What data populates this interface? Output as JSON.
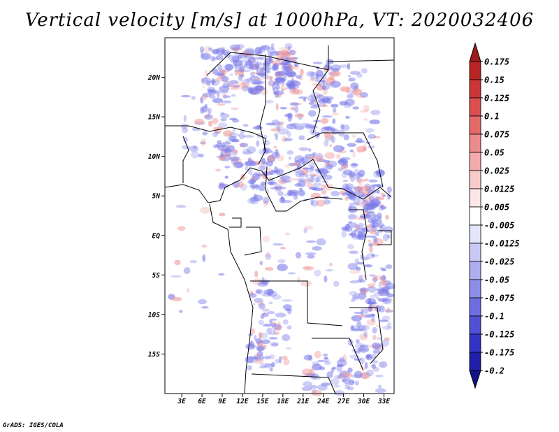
{
  "chart_data": {
    "type": "heatmap",
    "title": "Vertical velocity [m/s] at 1000hPa, VT: 2020032406",
    "x_ticks": [
      "3E",
      "6E",
      "9E",
      "12E",
      "15E",
      "18E",
      "21E",
      "24E",
      "27E",
      "30E",
      "33E"
    ],
    "x_tick_values": [
      3,
      6,
      9,
      12,
      15,
      18,
      21,
      24,
      27,
      30,
      33
    ],
    "y_ticks": [
      "20N",
      "15N",
      "10N",
      "5N",
      "EQ",
      "5S",
      "10S",
      "15S"
    ],
    "y_tick_values": [
      20,
      15,
      10,
      5,
      0,
      -5,
      -10,
      -15
    ],
    "xlim": [
      0.5,
      34.5
    ],
    "ylim": [
      -20,
      25
    ],
    "colorbar": {
      "labels": [
        "0.175",
        "0.15",
        "0.125",
        "0.1",
        "0.075",
        "0.05",
        "0.025",
        "0.0125",
        "0.005",
        "-0.005",
        "-0.0125",
        "-0.025",
        "-0.05",
        "-0.075",
        "-0.1",
        "-0.125",
        "-0.175",
        "-0.2"
      ],
      "colors": [
        "#9e1b1b",
        "#b82424",
        "#cc3535",
        "#dc4f4f",
        "#e46a6a",
        "#ec8b8b",
        "#f3aaaa",
        "#f8cbcb",
        "#fce6e6",
        "#ffffff",
        "#e4e4fb",
        "#c9c9f6",
        "#adadf0",
        "#8e8ee9",
        "#6e6ee0",
        "#5050d4",
        "#3333c4",
        "#1f1fa8",
        "#12128a"
      ],
      "extends": "both"
    },
    "field_note_colors": {
      "negative": "#7b7bea",
      "positive": "#f09a9a"
    }
  },
  "credit": "GrADS: IGES/COLA"
}
